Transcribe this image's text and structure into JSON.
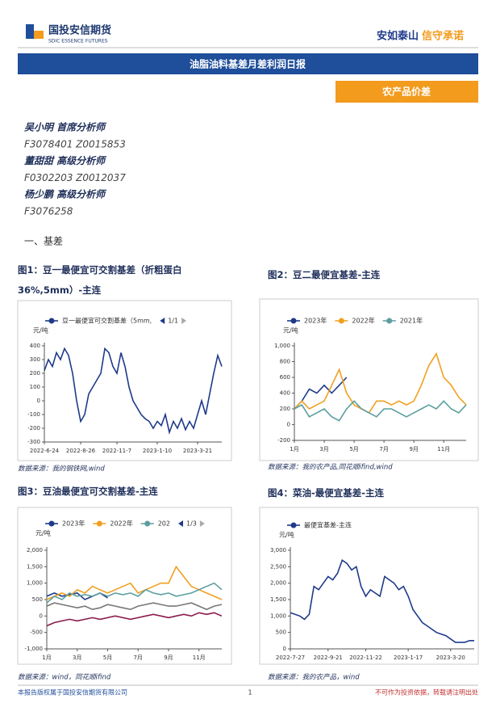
{
  "header": {
    "logo_cn": "国投安信期货",
    "logo_en": "SDIC ESSENCE FUTURES",
    "slogan_1": "安如泰山",
    "slogan_2": "信守承诺",
    "banner": "油脂油料基差月差利润日报",
    "tag": "农产品价差"
  },
  "analysts": [
    "吴小明 首席分析师",
    "F3078401 Z0015853",
    "董甜甜 高级分析师",
    "F0302203 Z0012037",
    "杨少鹏 高级分析师",
    "F3076258"
  ],
  "section": "一、基差",
  "chart_data": [
    {
      "type": "line",
      "title": "图1：豆一最便宜可交割基差（折粗蛋白36%,5mm）-主连",
      "y_label": "元/吨",
      "legend_pager": "1/1",
      "source": "数据来源：我的钢铁网,wind",
      "grid": false,
      "categories": [
        "2022-6-24",
        null,
        null,
        null,
        null,
        null,
        null,
        null,
        null,
        "2022-8-26",
        null,
        null,
        null,
        null,
        null,
        null,
        null,
        null,
        "2022-11-7",
        null,
        null,
        null,
        null,
        null,
        null,
        null,
        null,
        null,
        "2023-1-10",
        null,
        null,
        null,
        null,
        null,
        null,
        null,
        null,
        null,
        "2023-3-21",
        null,
        null,
        null,
        null,
        null,
        null
      ],
      "series": [
        {
          "name": "豆一最便宜可交割基差（5mm,",
          "color": "#1f3a8a",
          "values": [
            220,
            300,
            250,
            350,
            300,
            380,
            330,
            200,
            0,
            -150,
            -100,
            50,
            100,
            150,
            200,
            380,
            350,
            250,
            200,
            350,
            250,
            100,
            0,
            -50,
            -100,
            -130,
            -150,
            -200,
            -150,
            -180,
            -100,
            -230,
            -150,
            -200,
            -130,
            -210,
            -150,
            -200,
            -100,
            0,
            -100,
            50,
            200,
            330,
            250
          ]
        }
      ],
      "ylim": [
        -300,
        400
      ],
      "yticks": [
        -300,
        -200,
        -100,
        0,
        100,
        200,
        300,
        400
      ]
    },
    {
      "type": "line",
      "title": "图2：豆二最便宜基差-主连",
      "y_label": "元/吨",
      "source": "数据来源：我的农产品,同花顺ifind,wind",
      "grid": false,
      "categories": [
        "1月",
        null,
        null,
        null,
        "3月",
        null,
        null,
        null,
        "5月",
        null,
        null,
        null,
        "7月",
        null,
        null,
        null,
        "9月",
        null,
        null,
        null,
        "11月",
        null,
        null,
        null
      ],
      "series": [
        {
          "name": "2023年",
          "color": "#1f3a8a",
          "values": [
            200,
            300,
            450,
            400,
            500,
            400,
            500,
            600,
            null,
            null,
            null,
            null,
            null,
            null,
            null,
            null,
            null,
            null,
            null,
            null,
            null,
            null,
            null,
            null
          ]
        },
        {
          "name": "2022年",
          "color": "#f0a020",
          "values": [
            200,
            300,
            200,
            250,
            300,
            500,
            700,
            400,
            250,
            200,
            150,
            300,
            300,
            250,
            300,
            250,
            300,
            500,
            750,
            900,
            600,
            500,
            350,
            250
          ]
        },
        {
          "name": "2021年",
          "color": "#5b9ea0",
          "values": [
            200,
            250,
            100,
            150,
            200,
            100,
            50,
            200,
            300,
            200,
            150,
            100,
            200,
            200,
            150,
            100,
            150,
            200,
            250,
            200,
            300,
            200,
            150,
            250
          ]
        }
      ],
      "ylim": [
        -200,
        1000
      ],
      "yticks": [
        -200,
        0,
        200,
        400,
        600,
        800,
        {
          "value": 1000,
          "label": "1,000"
        }
      ]
    },
    {
      "type": "line",
      "title": "图3：豆油最便宜可交割基差-主连",
      "y_label": "元/吨",
      "legend_pager": "1/3",
      "source": "数据来源：wind，同花顺ifind",
      "grid": false,
      "categories": [
        "1月",
        null,
        null,
        null,
        "3月",
        null,
        null,
        null,
        "5月",
        null,
        null,
        null,
        "7月",
        null,
        null,
        null,
        "9月",
        null,
        null,
        null,
        "11月",
        null,
        null,
        null
      ],
      "series": [
        {
          "name": "2023年",
          "color": "#1f3a8a",
          "values": [
            600,
            700,
            600,
            650,
            700,
            500,
            600,
            700,
            550,
            null,
            null,
            null,
            null,
            null,
            null,
            null,
            null,
            null,
            null,
            null,
            null,
            null,
            null,
            null
          ]
        },
        {
          "name": "2022年",
          "color": "#f0a020",
          "values": [
            500,
            600,
            700,
            600,
            800,
            700,
            900,
            800,
            700,
            800,
            900,
            1000,
            700,
            800,
            900,
            1000,
            1000,
            1500,
            1200,
            900,
            800,
            700,
            600,
            500
          ]
        },
        {
          "name": "202",
          "color": "#5b9ea0",
          "values": [
            400,
            600,
            500,
            700,
            600,
            650,
            600,
            700,
            600,
            700,
            650,
            700,
            600,
            800,
            700,
            650,
            700,
            600,
            650,
            700,
            800,
            900,
            1000,
            800
          ]
        },
        {
          "color": "#777777",
          "values": [
            300,
            400,
            350,
            300,
            250,
            300,
            200,
            250,
            350,
            300,
            250,
            200,
            300,
            350,
            400,
            350,
            300,
            300,
            350,
            400,
            300,
            200,
            300,
            350
          ]
        },
        {
          "color": "#8b1a4a",
          "values": [
            -300,
            -200,
            -150,
            -100,
            -150,
            -100,
            -50,
            -100,
            -50,
            0,
            -50,
            -100,
            -50,
            0,
            50,
            0,
            -50,
            0,
            50,
            0,
            100,
            50,
            100,
            0
          ]
        }
      ],
      "ylim": [
        -1000,
        2000
      ],
      "yticks": [
        {
          "value": -1000,
          "label": "-1,000"
        },
        -500,
        0,
        500,
        {
          "value": 1000,
          "label": "1,000"
        },
        {
          "value": 1500,
          "label": "1,500"
        },
        {
          "value": 2000,
          "label": "2,000"
        }
      ]
    },
    {
      "type": "line",
      "title": "图4：菜油-最便宜基差-主连",
      "y_label": "元/吨",
      "source": "数据来源：我的农产品，wind",
      "grid": false,
      "categories": [
        "2022-7-27",
        null,
        null,
        null,
        null,
        null,
        null,
        null,
        "2022-9-21",
        null,
        null,
        null,
        null,
        null,
        null,
        null,
        "2022-11-22",
        null,
        null,
        null,
        null,
        null,
        null,
        null,
        null,
        "2023-1-17",
        null,
        null,
        null,
        null,
        null,
        null,
        null,
        null,
        "2023-3-20",
        null,
        null,
        null,
        null,
        null
      ],
      "series": [
        {
          "name": "最便宜基差-主连",
          "color": "#1f3a8a",
          "values": [
            1100,
            1050,
            1000,
            900,
            1050,
            1900,
            1800,
            2000,
            2200,
            2100,
            2300,
            2700,
            2600,
            2400,
            2500,
            1900,
            1600,
            1800,
            1700,
            1600,
            2200,
            2100,
            2000,
            1800,
            1900,
            1600,
            1200,
            1000,
            800,
            700,
            600,
            500,
            450,
            400,
            300,
            200,
            200,
            200,
            250,
            250
          ]
        }
      ],
      "ylim": [
        0,
        3000
      ],
      "yticks": [
        0,
        500,
        {
          "value": 1000,
          "label": "1,000"
        },
        {
          "value": 1500,
          "label": "1,500"
        },
        {
          "value": 2000,
          "label": "2,000"
        },
        {
          "value": 2500,
          "label": "2,500"
        },
        {
          "value": 3000,
          "label": "3,000"
        }
      ]
    }
  ],
  "footer": {
    "left": "本报告版权属于国投安信期货有限公司",
    "page": "1",
    "right": "不可作为投资依据，转载请注明出处"
  }
}
